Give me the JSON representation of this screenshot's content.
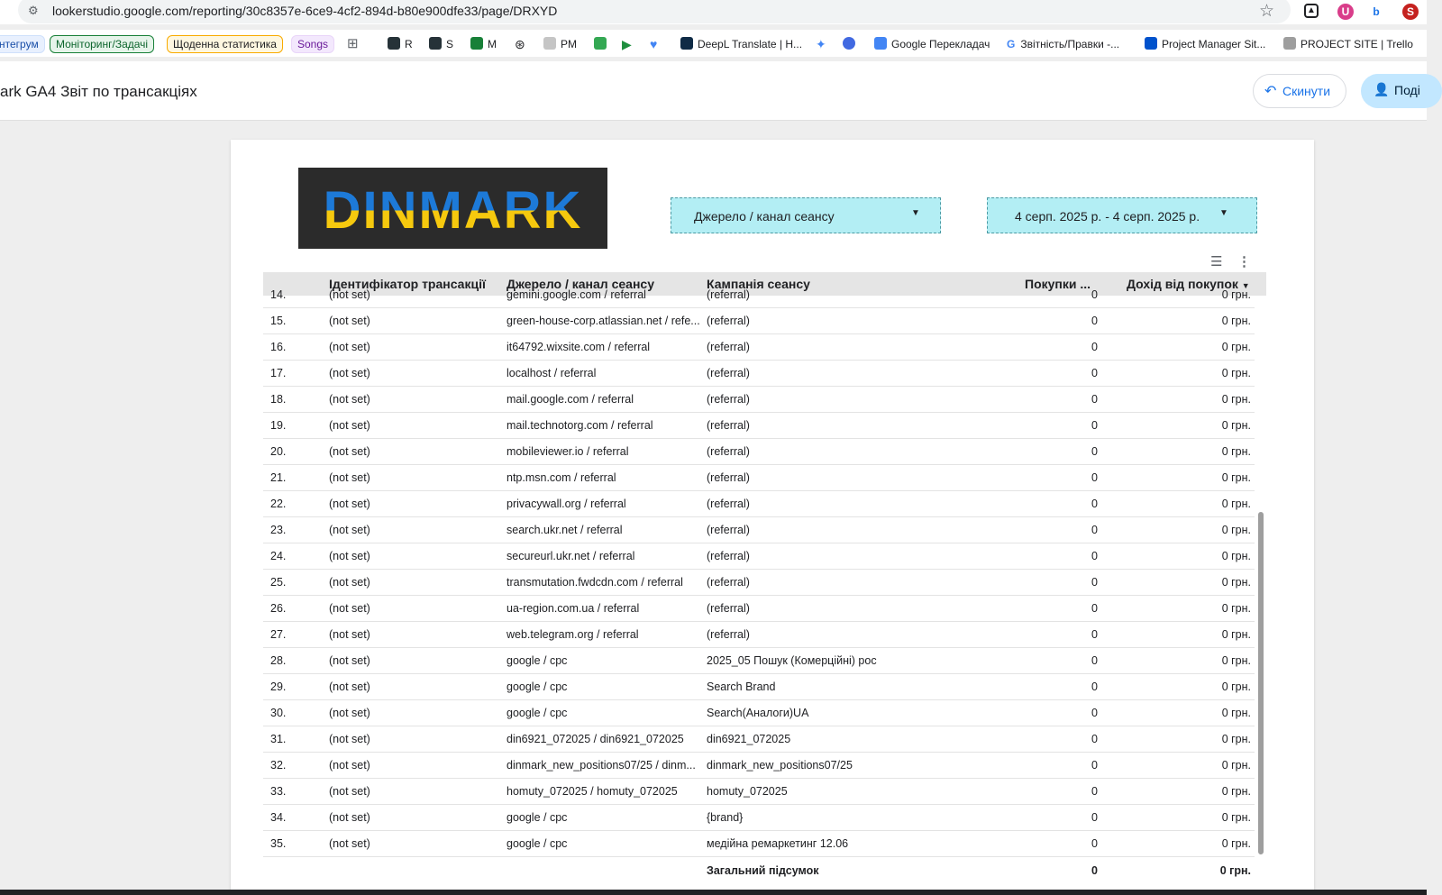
{
  "browser": {
    "url": "lookerstudio.google.com/reporting/30c8357e-6ce9-4cf2-894d-b80e900dfe33/page/DRXYD",
    "bookmarks": [
      {
        "label": "нтегрум",
        "style": "tag-blue"
      },
      {
        "label": "Моніторинг/Задачі",
        "style": "tag-green"
      },
      {
        "label": "Щоденна статистика",
        "style": "tag-yellow"
      },
      {
        "label": "Songs",
        "style": "tag-purple"
      },
      {
        "label": "R"
      },
      {
        "label": "S"
      },
      {
        "label": "M"
      },
      {
        "label": "PM"
      },
      {
        "label": "DeepL Translate | H..."
      },
      {
        "label": "Google Перекладач"
      },
      {
        "label": "Звітність/Правки -..."
      },
      {
        "label": "Project Manager Sit..."
      },
      {
        "label": "PROJECT SITE | Trello"
      }
    ]
  },
  "header": {
    "title": "ark GA4 Звіт по трансакціях",
    "reset_label": "Скинути",
    "share_label": "Поді"
  },
  "report": {
    "logo_text": "DINMARK",
    "source_filter_label": "Джерело / канал сеансу",
    "date_range_label": "4 серп. 2025 р. - 4 серп. 2025 р."
  },
  "table": {
    "columns": [
      "Ідентифікатор трансакції",
      "Джерело / канал сеансу",
      "Кампанія сеансу",
      "Покупки ...",
      "Дохід від покупок"
    ],
    "rows": [
      [
        "14.",
        "(not set)",
        "gemini.google.com / referral",
        "(referral)",
        "0",
        "0 грн."
      ],
      [
        "15.",
        "(not set)",
        "green-house-corp.atlassian.net / refe...",
        "(referral)",
        "0",
        "0 грн."
      ],
      [
        "16.",
        "(not set)",
        "it64792.wixsite.com / referral",
        "(referral)",
        "0",
        "0 грн."
      ],
      [
        "17.",
        "(not set)",
        "localhost / referral",
        "(referral)",
        "0",
        "0 грн."
      ],
      [
        "18.",
        "(not set)",
        "mail.google.com / referral",
        "(referral)",
        "0",
        "0 грн."
      ],
      [
        "19.",
        "(not set)",
        "mail.technotorg.com / referral",
        "(referral)",
        "0",
        "0 грн."
      ],
      [
        "20.",
        "(not set)",
        "mobileviewer.io / referral",
        "(referral)",
        "0",
        "0 грн."
      ],
      [
        "21.",
        "(not set)",
        "ntp.msn.com / referral",
        "(referral)",
        "0",
        "0 грн."
      ],
      [
        "22.",
        "(not set)",
        "privacywall.org / referral",
        "(referral)",
        "0",
        "0 грн."
      ],
      [
        "23.",
        "(not set)",
        "search.ukr.net / referral",
        "(referral)",
        "0",
        "0 грн."
      ],
      [
        "24.",
        "(not set)",
        "secureurl.ukr.net / referral",
        "(referral)",
        "0",
        "0 грн."
      ],
      [
        "25.",
        "(not set)",
        "transmutation.fwdcdn.com / referral",
        "(referral)",
        "0",
        "0 грн."
      ],
      [
        "26.",
        "(not set)",
        "ua-region.com.ua / referral",
        "(referral)",
        "0",
        "0 грн."
      ],
      [
        "27.",
        "(not set)",
        "web.telegram.org / referral",
        "(referral)",
        "0",
        "0 грн."
      ],
      [
        "28.",
        "(not set)",
        "google / cpc",
        "2025_05 Пошук (Комерційні) рос",
        "0",
        "0 грн."
      ],
      [
        "29.",
        "(not set)",
        "google / cpc",
        "Search Brand",
        "0",
        "0 грн."
      ],
      [
        "30.",
        "(not set)",
        "google / cpc",
        "Search(Аналоги)UA",
        "0",
        "0 грн."
      ],
      [
        "31.",
        "(not set)",
        "din6921_072025 / din6921_072025",
        "din6921_072025",
        "0",
        "0 грн."
      ],
      [
        "32.",
        "(not set)",
        "dinmark_new_positions07/25 / dinm...",
        "dinmark_new_positions07/25",
        "0",
        "0 грн."
      ],
      [
        "33.",
        "(not set)",
        "homuty_072025 / homuty_072025",
        "homuty_072025",
        "0",
        "0 грн."
      ],
      [
        "34.",
        "(not set)",
        "google / cpc",
        "{brand}",
        "0",
        "0 грн."
      ],
      [
        "35.",
        "(not set)",
        "google / cpc",
        "медійна ремаркетинг 12.06",
        "0",
        "0 грн."
      ]
    ],
    "totals": {
      "label": "Загальний підсумок",
      "purchases": "0",
      "revenue": "0 грн."
    }
  }
}
